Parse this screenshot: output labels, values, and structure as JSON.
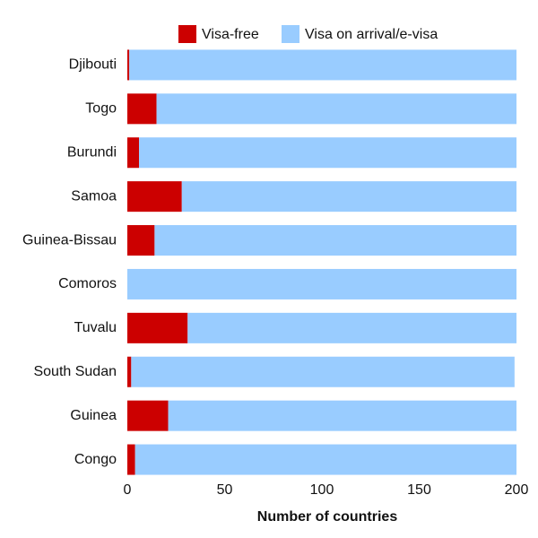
{
  "chart_data": {
    "type": "stacked-barh",
    "x_label": "Number of countries",
    "categories": [
      "Djibouti",
      "Togo",
      "Burundi",
      "Samoa",
      "Guinea-Bissau",
      "Comoros",
      "Tuvalu",
      "South Sudan",
      "Guinea",
      "Congo"
    ],
    "series": [
      {
        "name": "Visa-free",
        "color": "#cc0000",
        "values": [
          1,
          15,
          6,
          28,
          14,
          0,
          31,
          2,
          21,
          4
        ]
      },
      {
        "name": "Visa on arrival/e-visa",
        "color": "#99ccff",
        "values": [
          199,
          185,
          194,
          172,
          186,
          200,
          169,
          197,
          179,
          196
        ]
      }
    ],
    "xlim": [
      0,
      200
    ],
    "xticks": [
      0,
      50,
      100,
      150,
      200
    ],
    "grid": false,
    "legend": "top"
  }
}
